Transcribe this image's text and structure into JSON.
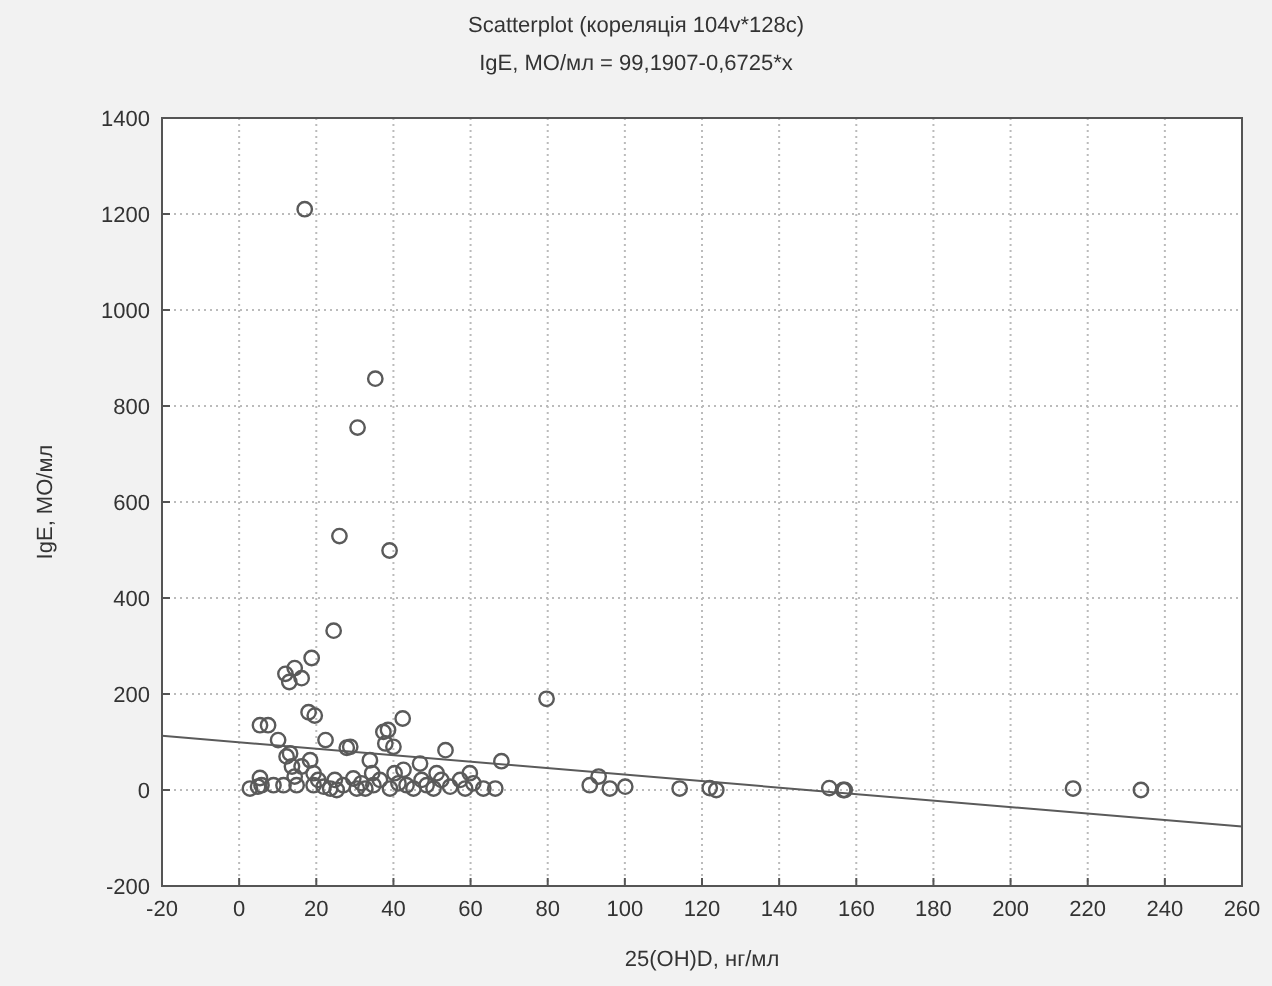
{
  "chart_data": {
    "type": "scatter",
    "title": "Scatterplot (кореляція 104v*128c)",
    "subtitle": "IgE, МО/мл = 99,1907-0,6725*x",
    "xlabel": "25(OH)D, нг/мл",
    "ylabel": "IgE, МО/мл",
    "xlim": [
      -20,
      260
    ],
    "xticks": [
      -20,
      0,
      20,
      40,
      60,
      80,
      100,
      120,
      140,
      160,
      180,
      200,
      220,
      240,
      260
    ],
    "ylim": [
      -200,
      1400
    ],
    "yticks": [
      -200,
      0,
      200,
      400,
      600,
      800,
      1000,
      1200,
      1400
    ],
    "grid": true,
    "marker": "circle",
    "series": [
      {
        "color": "#5a5a5a",
        "x": [
          17,
          35.3,
          30.7,
          26,
          39,
          24.5,
          18.8,
          14.4,
          12,
          16.2,
          13,
          18,
          19.6,
          42.4,
          79.7,
          5.4,
          7.5,
          2.8,
          4.9,
          5.4,
          5.8,
          8.9,
          10.1,
          11.5,
          12.3,
          13.2,
          13.7,
          14.4,
          14.9,
          16.2,
          18.4,
          19.3,
          19.3,
          20.5,
          21.9,
          22.4,
          23.6,
          24.8,
          25.3,
          27,
          27.9,
          28.8,
          29.6,
          30.5,
          31.7,
          32.7,
          33.9,
          34.5,
          34.8,
          36.5,
          37.4,
          37.9,
          38.6,
          39.1,
          40,
          40.3,
          41.3,
          42.6,
          43.4,
          45.2,
          46.9,
          47.3,
          48.6,
          50.4,
          51.2,
          52.4,
          53.5,
          54.7,
          57.3,
          58.6,
          59.8,
          60.7,
          63.3,
          66.4,
          68,
          90.9,
          93.2,
          96.1,
          100.1,
          114.2,
          122,
          123.7,
          153,
          156.6,
          157,
          216.2,
          233.8
        ],
        "values": [
          1210,
          857,
          755,
          529,
          499,
          332,
          275,
          254,
          242,
          233,
          225,
          162,
          155,
          149,
          190,
          135,
          135,
          3,
          7,
          25,
          10,
          10,
          104,
          10,
          70,
          76,
          49,
          28,
          10,
          49,
          62,
          35,
          10,
          21,
          7,
          104,
          3,
          21,
          0,
          10,
          88,
          90,
          24,
          3,
          14,
          3,
          62,
          35,
          10,
          21,
          121,
          97,
          125,
          3,
          90,
          35,
          14,
          42,
          10,
          3,
          55,
          21,
          10,
          3,
          35,
          21,
          83,
          7,
          21,
          3,
          35,
          14,
          3,
          3,
          60,
          10,
          28,
          3,
          7,
          3,
          4,
          0,
          4,
          0,
          0,
          3,
          0
        ]
      },
      {
        "type": "line",
        "color": "#5a5a5a",
        "marker": "none",
        "x": [
          -20,
          260
        ],
        "values": [
          113,
          -76
        ]
      }
    ]
  }
}
